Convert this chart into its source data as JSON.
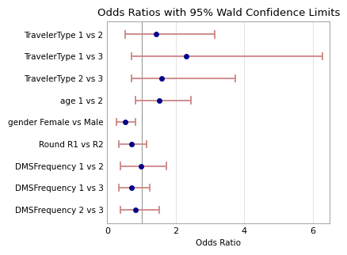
{
  "title": "Odds Ratios with 95% Wald Confidence Limits",
  "xlabel": "Odds Ratio",
  "xlim": [
    0,
    6.5
  ],
  "xticks": [
    0,
    2,
    4,
    6
  ],
  "vline": 1.0,
  "categories": [
    "DMSFrequency 2 vs 3",
    "DMSFrequency 1 vs 3",
    "DMSFrequency 1 vs 2",
    "Round R1 vs R2",
    "gender Female vs Male",
    "age 1 vs 2",
    "TravelerType 2 vs 3",
    "TravelerType 1 vs 3",
    "TravelerType 1 vs 2"
  ],
  "odds_ratios": [
    0.82,
    0.72,
    0.98,
    0.7,
    0.52,
    1.52,
    1.6,
    2.3,
    1.42
  ],
  "ci_low": [
    0.38,
    0.33,
    0.38,
    0.33,
    0.28,
    0.82,
    0.72,
    0.72,
    0.52
  ],
  "ci_high": [
    1.52,
    1.25,
    1.72,
    1.15,
    0.82,
    2.45,
    3.75,
    6.3,
    3.15
  ],
  "dot_color": "#00008B",
  "line_color": "#CD8585",
  "vline_color": "#999999",
  "bg_color": "#FFFFFF",
  "grid_color": "#DDDDDD",
  "border_color": "#AAAAAA",
  "title_fontsize": 9.5,
  "label_fontsize": 7.5,
  "tick_fontsize": 8
}
